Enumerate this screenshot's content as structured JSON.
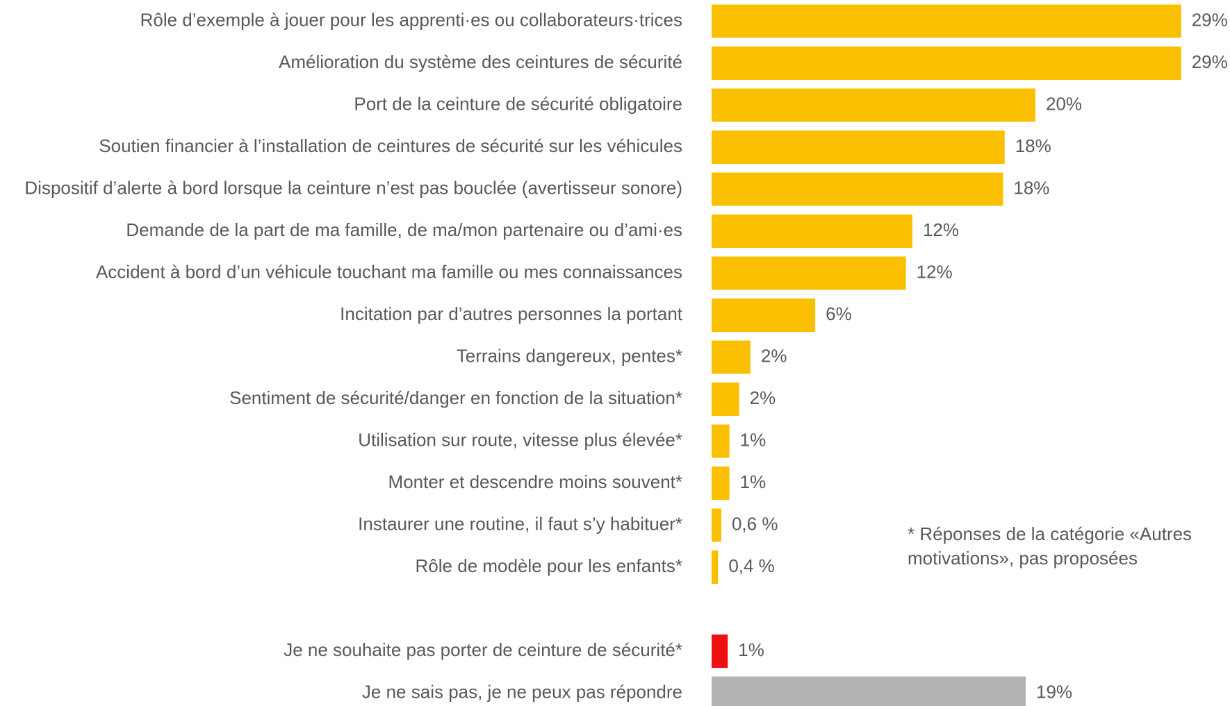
{
  "chart_data": {
    "type": "barh",
    "categories": [
      "Rôle d’exemple à jouer pour les apprenti·es ou collaborateurs·trices",
      "Amélioration du système des ceintures de sécurité",
      "Port de la ceinture de sécurité obligatoire",
      "Soutien financier à l’installation de ceintures de sécurité sur les véhicules",
      "Dispositif d’alerte à bord lorsque la ceinture n’est pas bouclée (avertisseur sonore)",
      "Demande de la part de ma famille, de ma/mon partenaire ou d’ami·es",
      "Accident à bord d’un véhicule touchant ma famille ou mes connaissances",
      "Incitation par d’autres personnes la portant",
      "Terrains dangereux, pentes*",
      "Sentiment de sécurité/danger en fonction de la situation*",
      "Utilisation sur route, vitesse plus élevée*",
      "Monter et descendre moins souvent*",
      "Instaurer une routine, il faut s’y habituer*",
      "Rôle de modèle pour les enfants*",
      "Je ne souhaite pas porter de ceinture de sécurité*",
      "Je ne sais pas, je ne peux pas répondre"
    ],
    "values": [
      29,
      29,
      20,
      18.1,
      18,
      12.4,
      12,
      6.4,
      2.4,
      1.7,
      1.1,
      1.1,
      0.6,
      0.4,
      1,
      19.4
    ],
    "value_labels": [
      "29%",
      "29%",
      "20%",
      "18%",
      "18%",
      "12%",
      "12%",
      "6%",
      "2%",
      "2%",
      "1%",
      "1%",
      "0,6 %",
      "0,4 %",
      "1%",
      "19%"
    ],
    "colors": [
      "#fac000",
      "#fac000",
      "#fac000",
      "#fac000",
      "#fac000",
      "#fac000",
      "#fac000",
      "#fac000",
      "#fac000",
      "#fac000",
      "#fac000",
      "#fac000",
      "#fac000",
      "#fac000",
      "#ee1111",
      "#b3b3b3"
    ],
    "annotation": "* Réponses de la catégorie «Autres motivations», pas proposées"
  }
}
